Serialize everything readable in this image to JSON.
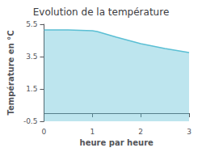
{
  "chart_data": {
    "type": "area",
    "title": "Evolution de la température",
    "xlabel": "heure par heure",
    "ylabel": "Température en °C",
    "x": [
      0,
      0.5,
      1.0,
      1.1,
      1.5,
      2.0,
      2.5,
      3.0
    ],
    "values": [
      5.15,
      5.15,
      5.1,
      5.05,
      4.7,
      4.3,
      4.0,
      3.75
    ],
    "color": "#5bbfd4",
    "xlim": [
      0,
      3
    ],
    "xticks": [
      0,
      1,
      2,
      3
    ],
    "ylim": [
      -0.5,
      5.5
    ],
    "yticks": [
      -0.5,
      1.5,
      3.5,
      5.5
    ],
    "grid": false
  }
}
